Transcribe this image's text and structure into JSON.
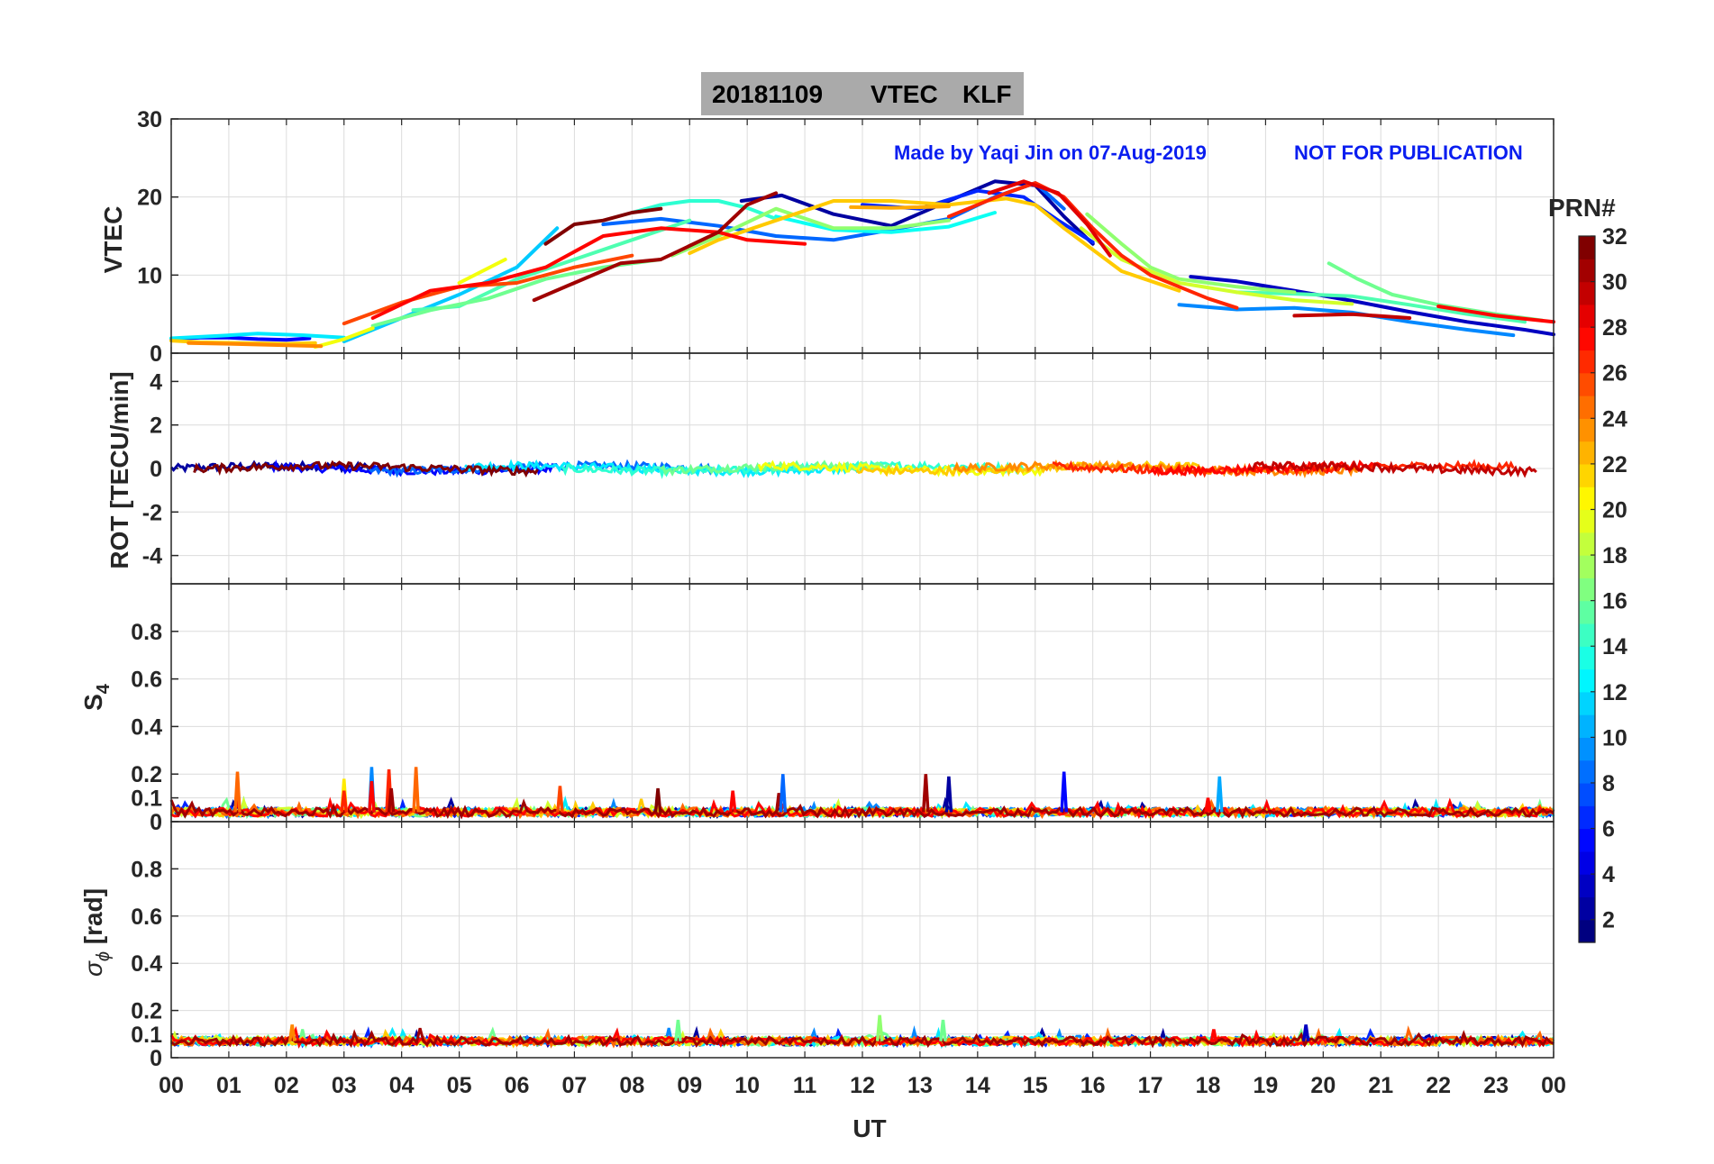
{
  "title": {
    "date": "20181109",
    "quantity": "VTEC",
    "station": "KLF"
  },
  "watermark": {
    "made_by": "Made by Yaqi Jin on 07-Aug-2019",
    "notice": "NOT FOR PUBLICATION"
  },
  "xaxis": {
    "label": "UT",
    "ticks": [
      "00",
      "01",
      "02",
      "03",
      "04",
      "05",
      "06",
      "07",
      "08",
      "09",
      "10",
      "11",
      "12",
      "13",
      "14",
      "15",
      "16",
      "17",
      "18",
      "19",
      "20",
      "21",
      "22",
      "23",
      "00"
    ]
  },
  "colorbar": {
    "label": "PRN#",
    "range": [
      1,
      32
    ],
    "ticks": [
      "2",
      "4",
      "6",
      "8",
      "10",
      "12",
      "14",
      "16",
      "18",
      "20",
      "22",
      "24",
      "26",
      "28",
      "30",
      "32"
    ],
    "colormap": "jet"
  },
  "chart_data": [
    {
      "type": "line",
      "panel": "vtec",
      "ylabel": "VTEC",
      "xlim": [
        0,
        24
      ],
      "ylim": [
        0,
        30
      ],
      "yticks": [
        "0",
        "10",
        "20",
        "30"
      ],
      "grid": true,
      "series": [
        {
          "prn": 2,
          "x": [
            9.9,
            10.6,
            11.5,
            12.5,
            13.5,
            14.3,
            15.0,
            15.5,
            16.0
          ],
          "y": [
            19.5,
            20.2,
            17.8,
            16.3,
            19.5,
            22.0,
            21.5,
            17.5,
            14.0
          ]
        },
        {
          "prn": 3,
          "x": [
            17.7,
            18.5,
            19.5,
            20.5,
            21.5,
            22.5,
            23.5,
            24.0
          ],
          "y": [
            9.8,
            9.2,
            8.0,
            6.7,
            5.3,
            4.0,
            3.0,
            2.4
          ]
        },
        {
          "prn": 5,
          "x": [
            0.0,
            0.5,
            1.0,
            1.5,
            2.0,
            2.4
          ],
          "y": [
            1.8,
            2.0,
            2.0,
            1.8,
            1.7,
            1.9
          ]
        },
        {
          "prn": 6,
          "x": [
            12.0,
            13.0,
            14.0,
            14.8,
            15.4,
            16.0
          ],
          "y": [
            19.0,
            18.5,
            20.8,
            20.0,
            17.0,
            14.2
          ]
        },
        {
          "prn": 8,
          "x": [
            7.5,
            8.5,
            9.5,
            10.5,
            11.5,
            12.5,
            13.5,
            14.3,
            15.0,
            15.5
          ],
          "y": [
            16.5,
            17.2,
            16.3,
            15.0,
            14.5,
            15.8,
            17.2,
            20.0,
            21.8,
            18.5
          ]
        },
        {
          "prn": 9,
          "x": [
            17.5,
            18.5,
            19.5,
            20.5,
            21.5,
            22.5,
            23.3
          ],
          "y": [
            6.2,
            5.6,
            5.8,
            5.2,
            4.0,
            3.0,
            2.3
          ]
        },
        {
          "prn": 11,
          "x": [
            3.0,
            4.0,
            5.0,
            6.0,
            6.7
          ],
          "y": [
            1.5,
            4.5,
            7.5,
            11.0,
            16.0
          ]
        },
        {
          "prn": 12,
          "x": [
            0.0,
            0.8,
            1.5,
            2.3,
            3.0
          ],
          "y": [
            1.9,
            2.2,
            2.5,
            2.3,
            2.0
          ]
        },
        {
          "prn": 13,
          "x": [
            10.5,
            11.5,
            12.5,
            13.5,
            14.3
          ],
          "y": [
            17.5,
            15.8,
            15.5,
            16.2,
            18.0
          ]
        },
        {
          "prn": 14,
          "x": [
            8.0,
            8.5,
            9.0,
            9.5,
            10.0,
            10.5
          ],
          "y": [
            18.0,
            19.0,
            19.5,
            19.5,
            18.6,
            17.2
          ]
        },
        {
          "prn": 15,
          "x": [
            4.2,
            5.0,
            6.0,
            7.0,
            8.0,
            9.0
          ],
          "y": [
            5.5,
            6.0,
            9.5,
            12.0,
            14.5,
            17.0
          ]
        },
        {
          "prn": 15,
          "x": [
            18.5,
            19.5,
            20.5,
            21.5,
            22.5,
            23.5
          ],
          "y": [
            7.8,
            7.6,
            7.3,
            6.2,
            5.0,
            4.0
          ]
        },
        {
          "prn": 16,
          "x": [
            3.5,
            4.5,
            5.5,
            6.5,
            7.5,
            8.5
          ],
          "y": [
            3.5,
            5.5,
            7.0,
            9.5,
            11.0,
            12.0
          ]
        },
        {
          "prn": 16,
          "x": [
            20.1,
            20.6,
            21.2,
            22.0,
            23.0,
            23.8
          ],
          "y": [
            11.5,
            9.5,
            7.5,
            6.2,
            5.0,
            4.2
          ]
        },
        {
          "prn": 17,
          "x": [
            8.7,
            9.5,
            10.5,
            11.5,
            12.5,
            13.5
          ],
          "y": [
            12.5,
            15.0,
            18.5,
            16.0,
            16.0,
            17.0
          ]
        },
        {
          "prn": 17,
          "x": [
            15.9,
            16.5,
            17.0,
            17.5,
            18.5,
            19.5
          ],
          "y": [
            17.8,
            14.0,
            11.0,
            9.5,
            8.5,
            7.8
          ]
        },
        {
          "prn": 19,
          "x": [
            15.8,
            16.5,
            17.5,
            18.5,
            19.5,
            20.5
          ],
          "y": [
            16.0,
            12.0,
            9.0,
            7.8,
            6.8,
            6.3
          ]
        },
        {
          "prn": 20,
          "x": [
            2.5,
            3.0,
            3.5
          ],
          "y": [
            0.8,
            1.8,
            3.2
          ]
        },
        {
          "prn": 20,
          "x": [
            5.0,
            5.8
          ],
          "y": [
            9.0,
            12.0
          ]
        },
        {
          "prn": 22,
          "x": [
            0.0,
            0.5,
            1.2,
            2.0,
            2.5
          ],
          "y": [
            1.6,
            1.4,
            1.3,
            1.2,
            1.3
          ]
        },
        {
          "prn": 22,
          "x": [
            9.0,
            9.5,
            10.5,
            11.5,
            12.5,
            13.5,
            14.5,
            15.0,
            15.5,
            16.5,
            17.5
          ],
          "y": [
            12.8,
            14.5,
            17.0,
            19.5,
            19.5,
            19.0,
            19.8,
            19.0,
            16.0,
            10.5,
            8.0
          ]
        },
        {
          "prn": 23,
          "x": [
            11.8,
            12.5,
            13.5
          ],
          "y": [
            18.7,
            18.6,
            18.8
          ]
        },
        {
          "prn": 24,
          "x": [
            0.3,
            1.0,
            2.0,
            2.6
          ],
          "y": [
            1.3,
            1.2,
            1.0,
            0.9
          ]
        },
        {
          "prn": 26,
          "x": [
            3.0,
            4.0,
            5.0,
            6.0,
            7.0,
            8.0
          ],
          "y": [
            3.8,
            6.5,
            8.5,
            9.0,
            11.0,
            12.5
          ]
        },
        {
          "prn": 27,
          "x": [
            13.5,
            14.5,
            15.0,
            15.5,
            16.0,
            16.5,
            17.0,
            18.0,
            18.5
          ],
          "y": [
            17.5,
            20.5,
            21.8,
            20.0,
            16.0,
            12.5,
            10.0,
            7.0,
            5.8
          ]
        },
        {
          "prn": 28,
          "x": [
            3.5,
            4.5,
            5.5,
            6.5,
            7.5,
            8.5,
            9.5,
            10.0,
            11.0
          ],
          "y": [
            4.5,
            8.0,
            9.0,
            11.0,
            15.0,
            16.0,
            15.5,
            14.5,
            14.0
          ]
        },
        {
          "prn": 28,
          "x": [
            22.0,
            22.5,
            23.0,
            23.5,
            24.0
          ],
          "y": [
            6.0,
            5.4,
            4.8,
            4.4,
            4.0
          ]
        },
        {
          "prn": 29,
          "x": [
            14.2,
            14.8,
            15.4,
            15.9,
            16.3
          ],
          "y": [
            20.5,
            22.0,
            20.5,
            16.5,
            12.5
          ]
        },
        {
          "prn": 30,
          "x": [
            19.5,
            20.5,
            21.5
          ],
          "y": [
            4.8,
            5.0,
            4.5
          ]
        },
        {
          "prn": 31,
          "x": [
            6.3,
            7.0,
            7.8,
            8.5,
            9.5,
            10.0,
            10.5
          ],
          "y": [
            6.8,
            9.0,
            11.5,
            12.0,
            15.5,
            19.0,
            20.5
          ]
        },
        {
          "prn": 32,
          "x": [
            6.5,
            7.0,
            7.5,
            8.0,
            8.5
          ],
          "y": [
            14.0,
            16.5,
            17.0,
            18.0,
            18.5
          ]
        }
      ]
    },
    {
      "type": "line",
      "panel": "rot",
      "ylabel": "ROT [TECU/min]",
      "xlim": [
        0,
        24
      ],
      "ylim": [
        -5.3,
        5.3
      ],
      "yticks": [
        "-4",
        "-2",
        "0",
        "2",
        "4"
      ],
      "grid": true,
      "baseline": 0,
      "peak": 0.5
    },
    {
      "type": "line",
      "panel": "s4",
      "ylabel": "S4",
      "xlim": [
        0,
        24
      ],
      "ylim": [
        0,
        1
      ],
      "yticks": [
        "0",
        "0.1",
        "0.2",
        "0.4",
        "0.6",
        "0.8"
      ],
      "grid": true,
      "baseline": 0.04,
      "spikes": [
        {
          "x": 1.15,
          "y": 0.21,
          "prn": 25
        },
        {
          "x": 3.0,
          "y": 0.18,
          "prn": 21
        },
        {
          "x": 3.0,
          "y": 0.13,
          "prn": 27
        },
        {
          "x": 3.48,
          "y": 0.23,
          "prn": 9
        },
        {
          "x": 3.48,
          "y": 0.17,
          "prn": 28
        },
        {
          "x": 3.78,
          "y": 0.22,
          "prn": 27
        },
        {
          "x": 3.82,
          "y": 0.14,
          "prn": 31
        },
        {
          "x": 4.25,
          "y": 0.23,
          "prn": 25
        },
        {
          "x": 6.75,
          "y": 0.15,
          "prn": 26
        },
        {
          "x": 8.45,
          "y": 0.14,
          "prn": 32
        },
        {
          "x": 9.75,
          "y": 0.13,
          "prn": 28
        },
        {
          "x": 10.55,
          "y": 0.12,
          "prn": 31
        },
        {
          "x": 10.62,
          "y": 0.2,
          "prn": 8
        },
        {
          "x": 13.1,
          "y": 0.2,
          "prn": 31
        },
        {
          "x": 13.5,
          "y": 0.19,
          "prn": 2
        },
        {
          "x": 15.5,
          "y": 0.21,
          "prn": 5
        },
        {
          "x": 18.2,
          "y": 0.19,
          "prn": 10
        },
        {
          "x": 18.0,
          "y": 0.1,
          "prn": 28
        }
      ]
    },
    {
      "type": "line",
      "panel": "sigma_phi",
      "ylabel": "σ_φ [rad]",
      "xlim": [
        0,
        24
      ],
      "ylim": [
        0,
        1
      ],
      "yticks": [
        "0",
        "0.1",
        "0.2",
        "0.4",
        "0.6",
        "0.8"
      ],
      "grid": true,
      "baseline": 0.07,
      "spikes": [
        {
          "x": 2.1,
          "y": 0.14,
          "prn": 24
        },
        {
          "x": 8.8,
          "y": 0.16,
          "prn": 16
        },
        {
          "x": 12.3,
          "y": 0.18,
          "prn": 17
        },
        {
          "x": 13.4,
          "y": 0.16,
          "prn": 16
        },
        {
          "x": 18.1,
          "y": 0.12,
          "prn": 28
        },
        {
          "x": 19.7,
          "y": 0.14,
          "prn": 3
        }
      ]
    }
  ]
}
